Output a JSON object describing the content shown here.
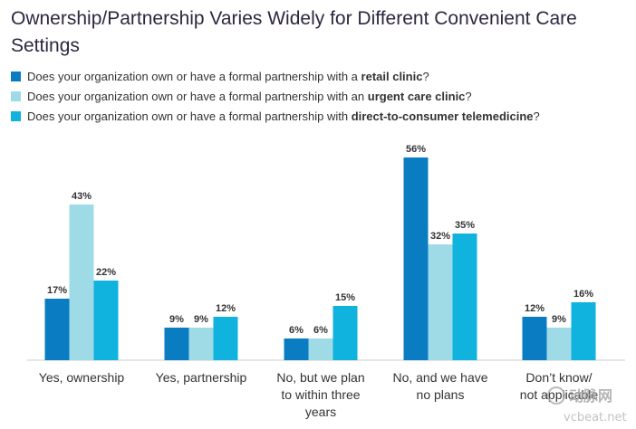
{
  "title": "Ownership/Partnership Varies Widely for Different Convenient Care Settings",
  "legend": [
    {
      "prefix": "Does your organization own or have a formal partnership with a ",
      "bold": "retail clinic",
      "suffix": "?",
      "color": "#0a7dc2"
    },
    {
      "prefix": "Does your organization own or have a formal partnership with an ",
      "bold": "urgent care clinic",
      "suffix": "?",
      "color": "#9fdbe6"
    },
    {
      "prefix": "Does your organization own or have a formal partnership with ",
      "bold": "direct-to-consumer telemedicine",
      "suffix": "?",
      "color": "#10b2de"
    }
  ],
  "chart_data": {
    "type": "bar",
    "title": "Ownership/Partnership Varies Widely for Different Convenient Care Settings",
    "categories": [
      [
        "Yes, ownership"
      ],
      [
        "Yes, partnership"
      ],
      [
        "No, but we plan",
        "to within three",
        "years"
      ],
      [
        "No, and we have",
        "no plans"
      ],
      [
        "Don’t know/",
        "not applicable"
      ]
    ],
    "series": [
      {
        "name": "retail clinic",
        "color": "#0a7dc2",
        "values": [
          17,
          9,
          6,
          56,
          12
        ]
      },
      {
        "name": "urgent care clinic",
        "color": "#9fdbe6",
        "values": [
          43,
          9,
          6,
          32,
          9
        ]
      },
      {
        "name": "direct-to-consumer telemedicine",
        "color": "#10b2de",
        "values": [
          22,
          12,
          15,
          35,
          16
        ]
      }
    ],
    "value_suffix": "%",
    "xlabel": "",
    "ylabel": "",
    "ylim": [
      0,
      60
    ],
    "grid": false
  },
  "watermark": {
    "brand": "动脉网",
    "site": "vcbeat.net"
  }
}
